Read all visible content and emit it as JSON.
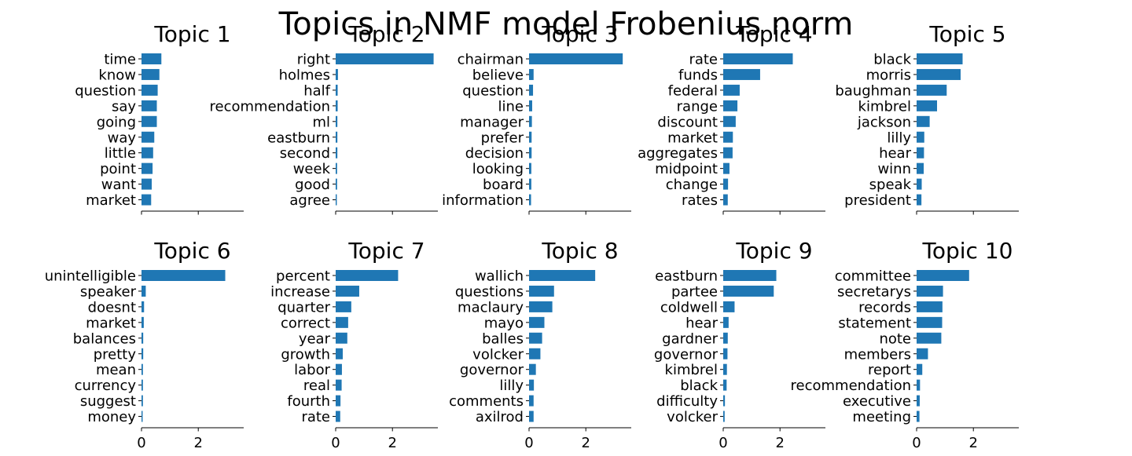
{
  "chart_data": {
    "type": "bar",
    "orientation": "horizontal",
    "title": "Topics in NMF model Frobenius norm",
    "bar_color": "#1f77b4",
    "xlim": [
      0,
      3.6
    ],
    "xticks": [
      0,
      2
    ],
    "shared_x": true,
    "x_tick_labels_only_bottom_row": true,
    "layout": {
      "rows": 2,
      "cols": 5
    },
    "panels": [
      {
        "title": "Topic 1",
        "categories": [
          "time",
          "know",
          "question",
          "say",
          "going",
          "way",
          "little",
          "point",
          "want",
          "market"
        ],
        "values": [
          0.7,
          0.63,
          0.57,
          0.54,
          0.54,
          0.45,
          0.41,
          0.39,
          0.36,
          0.34
        ]
      },
      {
        "title": "Topic 2",
        "categories": [
          "right",
          "holmes",
          "half",
          "recommendation",
          "ml",
          "eastburn",
          "second",
          "week",
          "good",
          "agree"
        ],
        "values": [
          3.45,
          0.08,
          0.07,
          0.07,
          0.06,
          0.06,
          0.06,
          0.05,
          0.05,
          0.04
        ]
      },
      {
        "title": "Topic 3",
        "categories": [
          "chairman",
          "believe",
          "question",
          "line",
          "manager",
          "prefer",
          "decision",
          "looking",
          "board",
          "information"
        ],
        "values": [
          3.3,
          0.16,
          0.14,
          0.11,
          0.1,
          0.09,
          0.09,
          0.08,
          0.08,
          0.07
        ]
      },
      {
        "title": "Topic 4",
        "categories": [
          "rate",
          "funds",
          "federal",
          "range",
          "discount",
          "market",
          "aggregates",
          "midpoint",
          "change",
          "rates"
        ],
        "values": [
          2.45,
          1.3,
          0.58,
          0.5,
          0.44,
          0.34,
          0.33,
          0.22,
          0.17,
          0.16
        ]
      },
      {
        "title": "Topic 5",
        "categories": [
          "black",
          "morris",
          "baughman",
          "kimbrel",
          "jackson",
          "lilly",
          "hear",
          "winn",
          "speak",
          "president"
        ],
        "values": [
          1.62,
          1.55,
          1.06,
          0.72,
          0.46,
          0.27,
          0.26,
          0.25,
          0.18,
          0.17
        ]
      },
      {
        "title": "Topic 6",
        "categories": [
          "unintelligible",
          "speaker",
          "doesnt",
          "market",
          "balances",
          "pretty",
          "mean",
          "currency",
          "suggest",
          "money"
        ],
        "values": [
          2.95,
          0.15,
          0.09,
          0.08,
          0.06,
          0.06,
          0.05,
          0.05,
          0.05,
          0.04
        ]
      },
      {
        "title": "Topic 7",
        "categories": [
          "percent",
          "increase",
          "quarter",
          "correct",
          "year",
          "growth",
          "labor",
          "real",
          "fourth",
          "rate"
        ],
        "values": [
          2.2,
          0.83,
          0.55,
          0.44,
          0.41,
          0.25,
          0.22,
          0.21,
          0.17,
          0.16
        ]
      },
      {
        "title": "Topic 8",
        "categories": [
          "wallich",
          "questions",
          "maclaury",
          "mayo",
          "balles",
          "volcker",
          "governor",
          "lilly",
          "comments",
          "axilrod"
        ],
        "values": [
          2.33,
          0.88,
          0.82,
          0.54,
          0.46,
          0.4,
          0.24,
          0.17,
          0.16,
          0.16
        ]
      },
      {
        "title": "Topic 9",
        "categories": [
          "eastburn",
          "partee",
          "coldwell",
          "hear",
          "gardner",
          "governor",
          "kimbrel",
          "black",
          "difficulty",
          "volcker"
        ],
        "values": [
          1.87,
          1.78,
          0.4,
          0.19,
          0.16,
          0.15,
          0.13,
          0.12,
          0.06,
          0.05
        ]
      },
      {
        "title": "Topic 10",
        "categories": [
          "committee",
          "secretarys",
          "records",
          "statement",
          "note",
          "members",
          "report",
          "recommendation",
          "executive",
          "meeting"
        ],
        "values": [
          1.85,
          0.93,
          0.91,
          0.9,
          0.87,
          0.4,
          0.2,
          0.12,
          0.11,
          0.1
        ]
      }
    ]
  }
}
